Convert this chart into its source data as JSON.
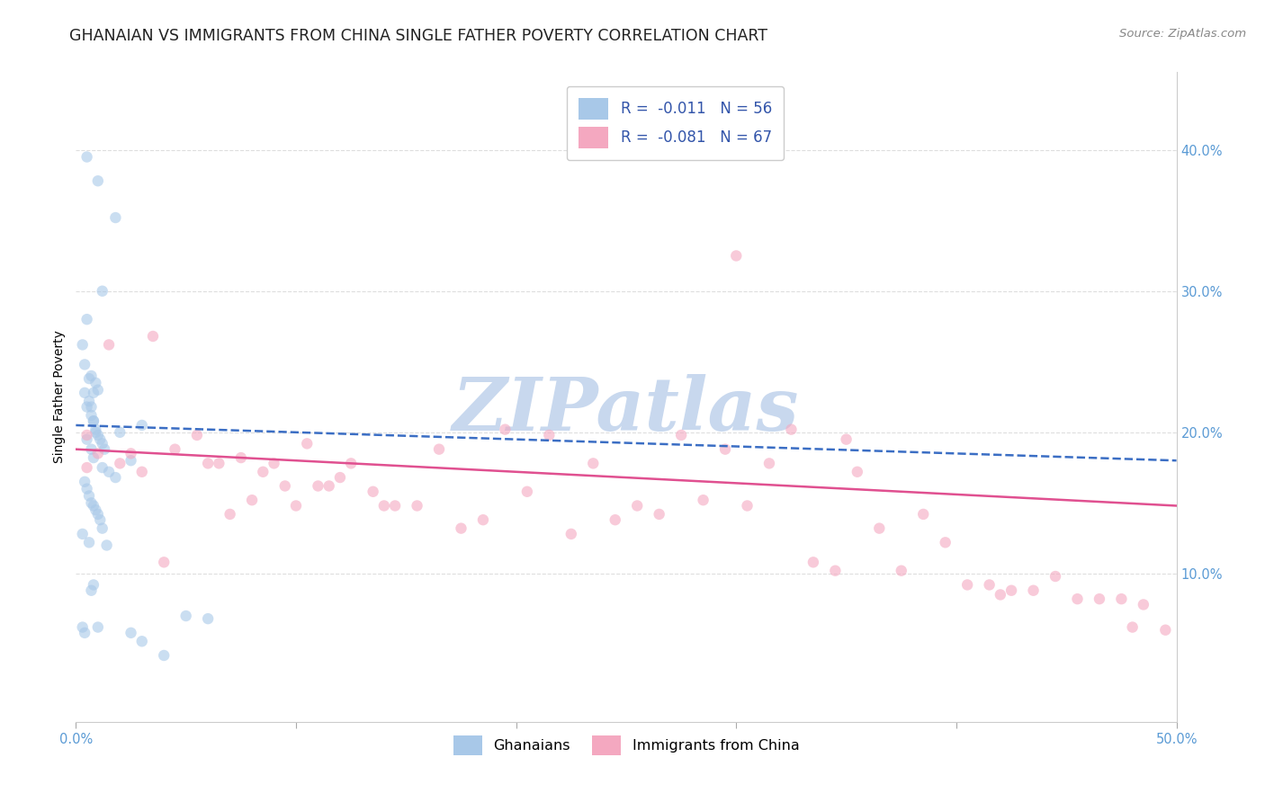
{
  "title": "GHANAIAN VS IMMIGRANTS FROM CHINA SINGLE FATHER POVERTY CORRELATION CHART",
  "source": "Source: ZipAtlas.com",
  "ylabel": "Single Father Poverty",
  "xlim": [
    0.0,
    0.5
  ],
  "ylim": [
    -0.005,
    0.455
  ],
  "xtick_positions": [
    0.0,
    0.1,
    0.2,
    0.3,
    0.4,
    0.5
  ],
  "xticklabels": [
    "0.0%",
    "",
    "",
    "",
    "",
    "50.0%"
  ],
  "ytick_positions": [
    0.1,
    0.2,
    0.3,
    0.4
  ],
  "ytick_labels": [
    "10.0%",
    "20.0%",
    "30.0%",
    "40.0%"
  ],
  "legend_entry1": "R =  -0.011   N = 56",
  "legend_entry2": "R =  -0.081   N = 67",
  "legend_color1": "#A8C8E8",
  "legend_color2": "#F4A8C0",
  "scatter_color1": "#A8C8E8",
  "scatter_color2": "#F4A8C0",
  "watermark": "ZIPatlas",
  "watermark_color": "#C8D8EE",
  "blue_scatter_x": [
    0.005,
    0.01,
    0.018,
    0.005,
    0.012,
    0.003,
    0.004,
    0.006,
    0.008,
    0.005,
    0.007,
    0.008,
    0.009,
    0.01,
    0.011,
    0.012,
    0.013,
    0.007,
    0.009,
    0.01,
    0.004,
    0.006,
    0.007,
    0.008,
    0.009,
    0.005,
    0.007,
    0.008,
    0.02,
    0.03,
    0.012,
    0.015,
    0.018,
    0.025,
    0.004,
    0.005,
    0.006,
    0.007,
    0.008,
    0.009,
    0.01,
    0.011,
    0.012,
    0.003,
    0.006,
    0.014,
    0.008,
    0.003,
    0.004,
    0.007,
    0.01,
    0.025,
    0.03,
    0.04,
    0.05,
    0.06
  ],
  "blue_scatter_y": [
    0.395,
    0.378,
    0.352,
    0.28,
    0.3,
    0.262,
    0.248,
    0.238,
    0.228,
    0.218,
    0.212,
    0.208,
    0.202,
    0.198,
    0.195,
    0.192,
    0.188,
    0.24,
    0.235,
    0.23,
    0.228,
    0.222,
    0.218,
    0.208,
    0.2,
    0.195,
    0.188,
    0.182,
    0.2,
    0.205,
    0.175,
    0.172,
    0.168,
    0.18,
    0.165,
    0.16,
    0.155,
    0.15,
    0.148,
    0.145,
    0.142,
    0.138,
    0.132,
    0.128,
    0.122,
    0.12,
    0.092,
    0.062,
    0.058,
    0.088,
    0.062,
    0.058,
    0.052,
    0.042,
    0.07,
    0.068
  ],
  "pink_scatter_x": [
    0.005,
    0.015,
    0.025,
    0.035,
    0.045,
    0.055,
    0.065,
    0.075,
    0.085,
    0.095,
    0.105,
    0.115,
    0.125,
    0.135,
    0.145,
    0.155,
    0.165,
    0.175,
    0.185,
    0.195,
    0.205,
    0.215,
    0.225,
    0.235,
    0.245,
    0.255,
    0.265,
    0.275,
    0.285,
    0.295,
    0.305,
    0.315,
    0.325,
    0.335,
    0.345,
    0.355,
    0.365,
    0.375,
    0.385,
    0.395,
    0.405,
    0.415,
    0.425,
    0.435,
    0.445,
    0.455,
    0.465,
    0.475,
    0.485,
    0.495,
    0.02,
    0.03,
    0.04,
    0.06,
    0.07,
    0.08,
    0.09,
    0.1,
    0.11,
    0.12,
    0.14,
    0.3,
    0.35,
    0.42,
    0.48,
    0.005,
    0.01
  ],
  "pink_scatter_y": [
    0.198,
    0.262,
    0.185,
    0.268,
    0.188,
    0.198,
    0.178,
    0.182,
    0.172,
    0.162,
    0.192,
    0.162,
    0.178,
    0.158,
    0.148,
    0.148,
    0.188,
    0.132,
    0.138,
    0.202,
    0.158,
    0.198,
    0.128,
    0.178,
    0.138,
    0.148,
    0.142,
    0.198,
    0.152,
    0.188,
    0.148,
    0.178,
    0.202,
    0.108,
    0.102,
    0.172,
    0.132,
    0.102,
    0.142,
    0.122,
    0.092,
    0.092,
    0.088,
    0.088,
    0.098,
    0.082,
    0.082,
    0.082,
    0.078,
    0.06,
    0.178,
    0.172,
    0.108,
    0.178,
    0.142,
    0.152,
    0.178,
    0.148,
    0.162,
    0.168,
    0.148,
    0.325,
    0.195,
    0.085,
    0.062,
    0.175,
    0.185
  ],
  "blue_line_x": [
    0.0,
    0.5
  ],
  "blue_line_y": [
    0.205,
    0.18
  ],
  "pink_line_x": [
    0.0,
    0.5
  ],
  "pink_line_y": [
    0.188,
    0.148
  ],
  "grid_color": "#DEDEDE",
  "scatter_alpha": 0.6,
  "scatter_size": 80,
  "title_fontsize": 12.5,
  "axis_label_fontsize": 10,
  "tick_fontsize": 10.5
}
